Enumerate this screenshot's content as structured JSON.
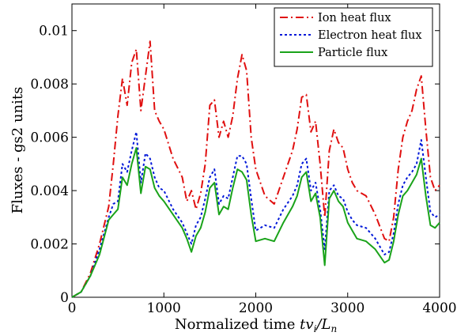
{
  "chart_data": {
    "type": "line",
    "title": "",
    "xlabel_text": "Normalized time ",
    "xlabel_math": "tv",
    "xlabel_sub": "i",
    "xlabel_tail": "/L",
    "xlabel_sub2": "n",
    "ylabel": "Fluxes - gs2 units",
    "xlim": [
      0,
      4000
    ],
    "ylim": [
      0,
      0.011
    ],
    "xticks": [
      0,
      1000,
      2000,
      3000,
      4000
    ],
    "xtick_labels": [
      "0",
      "1000",
      "2000",
      "3000",
      "4000"
    ],
    "yticks": [
      0,
      0.002,
      0.004,
      0.006,
      0.008,
      0.01
    ],
    "ytick_labels": [
      "0",
      "0.002",
      "0.004",
      "0.006",
      "0.008",
      "0.01"
    ],
    "legend_position": "top-right",
    "grid": false,
    "x": [
      0,
      100,
      200,
      300,
      400,
      450,
      500,
      550,
      600,
      650,
      700,
      750,
      800,
      850,
      900,
      950,
      1000,
      1100,
      1200,
      1250,
      1300,
      1350,
      1400,
      1450,
      1500,
      1550,
      1600,
      1650,
      1700,
      1750,
      1800,
      1850,
      1900,
      1950,
      2000,
      2100,
      2200,
      2300,
      2400,
      2450,
      2500,
      2550,
      2600,
      2650,
      2700,
      2750,
      2800,
      2850,
      2900,
      2950,
      3000,
      3050,
      3100,
      3200,
      3300,
      3400,
      3450,
      3500,
      3550,
      3600,
      3650,
      3700,
      3750,
      3800,
      3850,
      3900,
      3950,
      4000
    ],
    "series": [
      {
        "name": "Ion heat flux",
        "color": "#e01010",
        "dash": "10,4,2,4",
        "values": [
          0.0,
          0.0002,
          0.0009,
          0.002,
          0.0034,
          0.005,
          0.0068,
          0.0082,
          0.0072,
          0.0088,
          0.0093,
          0.007,
          0.0083,
          0.0096,
          0.007,
          0.0066,
          0.0063,
          0.0052,
          0.0045,
          0.0036,
          0.004,
          0.0033,
          0.0039,
          0.005,
          0.0072,
          0.0074,
          0.006,
          0.0066,
          0.006,
          0.0068,
          0.0082,
          0.0091,
          0.0085,
          0.006,
          0.0048,
          0.0038,
          0.0035,
          0.0045,
          0.0055,
          0.0063,
          0.0075,
          0.0076,
          0.0062,
          0.0066,
          0.005,
          0.003,
          0.0055,
          0.0063,
          0.0058,
          0.0056,
          0.0048,
          0.0043,
          0.004,
          0.0038,
          0.0031,
          0.0022,
          0.0021,
          0.003,
          0.0048,
          0.006,
          0.0066,
          0.007,
          0.0078,
          0.0083,
          0.0063,
          0.0045,
          0.004,
          0.0042
        ]
      },
      {
        "name": "Electron heat flux",
        "color": "#0018d8",
        "dash": "3,3",
        "values": [
          0.0,
          0.0002,
          0.0008,
          0.0018,
          0.003,
          0.0035,
          0.0036,
          0.005,
          0.0047,
          0.0055,
          0.0062,
          0.0043,
          0.0054,
          0.0052,
          0.0045,
          0.0041,
          0.004,
          0.0033,
          0.0028,
          0.0024,
          0.002,
          0.0027,
          0.003,
          0.0037,
          0.0045,
          0.0048,
          0.0035,
          0.0038,
          0.0037,
          0.0045,
          0.0053,
          0.0053,
          0.005,
          0.0037,
          0.0025,
          0.0027,
          0.0026,
          0.0033,
          0.0038,
          0.0042,
          0.005,
          0.0052,
          0.004,
          0.0043,
          0.0033,
          0.0018,
          0.004,
          0.0042,
          0.0038,
          0.0037,
          0.0032,
          0.0029,
          0.0027,
          0.0026,
          0.0022,
          0.0016,
          0.0017,
          0.0024,
          0.0035,
          0.0042,
          0.0045,
          0.0047,
          0.005,
          0.0059,
          0.0045,
          0.0032,
          0.003,
          0.0031
        ]
      },
      {
        "name": "Particle flux",
        "color": "#1aa31a",
        "dash": "",
        "values": [
          0.0,
          0.0002,
          0.0008,
          0.0016,
          0.0029,
          0.0031,
          0.0033,
          0.0045,
          0.0042,
          0.005,
          0.0056,
          0.0039,
          0.0049,
          0.0048,
          0.0041,
          0.0038,
          0.0036,
          0.0031,
          0.0026,
          0.0022,
          0.0017,
          0.0023,
          0.0026,
          0.0032,
          0.0041,
          0.0043,
          0.0031,
          0.0034,
          0.0033,
          0.0041,
          0.0048,
          0.0047,
          0.0044,
          0.0031,
          0.0021,
          0.0022,
          0.0021,
          0.0028,
          0.0034,
          0.0038,
          0.0045,
          0.0047,
          0.0036,
          0.0039,
          0.003,
          0.0012,
          0.0037,
          0.004,
          0.0036,
          0.0034,
          0.0028,
          0.0025,
          0.0022,
          0.0021,
          0.0018,
          0.0013,
          0.0014,
          0.0021,
          0.0031,
          0.0038,
          0.004,
          0.0043,
          0.0046,
          0.0052,
          0.0038,
          0.0027,
          0.0026,
          0.0028
        ]
      }
    ]
  }
}
